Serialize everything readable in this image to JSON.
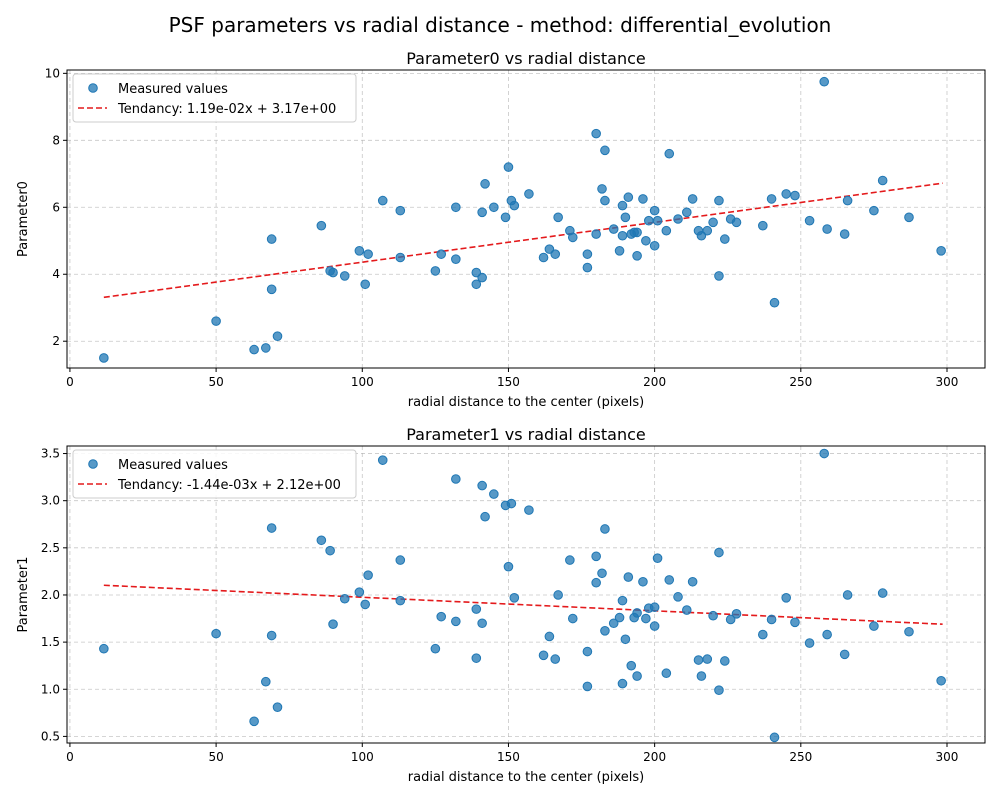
{
  "figure": {
    "title": "PSF parameters vs radial distance - method: differential_evolution"
  },
  "colors": {
    "points": "#1f77b4",
    "trend": "#e41a1c"
  },
  "chart_data": [
    {
      "type": "scatter",
      "title": "Parameter0 vs radial distance",
      "xlabel": "radial distance to the center (pixels)",
      "ylabel": "Parameter0",
      "xlim": [
        -1,
        313
      ],
      "ylim": [
        1.2,
        10.1
      ],
      "xticks": [
        0,
        50,
        100,
        150,
        200,
        250,
        300
      ],
      "yticks": [
        2,
        4,
        6,
        8,
        10
      ],
      "grid": true,
      "legend_position": "top-left",
      "series": [
        {
          "name": "Measured values",
          "kind": "points",
          "points": [
            [
              11.6,
              1.5
            ],
            [
              50,
              2.6
            ],
            [
              63,
              1.75
            ],
            [
              67,
              1.8
            ],
            [
              69,
              3.55
            ],
            [
              69,
              5.05
            ],
            [
              71,
              2.15
            ],
            [
              86,
              5.45
            ],
            [
              89,
              4.1
            ],
            [
              90,
              4.05
            ],
            [
              94,
              3.95
            ],
            [
              99,
              4.7
            ],
            [
              101,
              3.7
            ],
            [
              102,
              4.6
            ],
            [
              107,
              6.2
            ],
            [
              113,
              4.5
            ],
            [
              113,
              5.9
            ],
            [
              125,
              4.1
            ],
            [
              127,
              4.6
            ],
            [
              132,
              6.0
            ],
            [
              132,
              4.45
            ],
            [
              139,
              4.05
            ],
            [
              139,
              3.7
            ],
            [
              141,
              5.85
            ],
            [
              141,
              3.9
            ],
            [
              142,
              6.7
            ],
            [
              145,
              6.0
            ],
            [
              149,
              5.7
            ],
            [
              150,
              7.2
            ],
            [
              151,
              6.2
            ],
            [
              152,
              6.05
            ],
            [
              157,
              6.4
            ],
            [
              162,
              4.5
            ],
            [
              164,
              4.75
            ],
            [
              166,
              4.6
            ],
            [
              167,
              5.7
            ],
            [
              171,
              5.3
            ],
            [
              172,
              5.1
            ],
            [
              177,
              4.2
            ],
            [
              177,
              4.6
            ],
            [
              180,
              8.2
            ],
            [
              180,
              5.2
            ],
            [
              182,
              6.55
            ],
            [
              183,
              7.7
            ],
            [
              183,
              6.2
            ],
            [
              186,
              5.35
            ],
            [
              188,
              4.7
            ],
            [
              189,
              5.15
            ],
            [
              189,
              6.05
            ],
            [
              190,
              5.7
            ],
            [
              191,
              6.3
            ],
            [
              192,
              5.2
            ],
            [
              193,
              5.25
            ],
            [
              194,
              5.25
            ],
            [
              194,
              4.55
            ],
            [
              196,
              6.25
            ],
            [
              197,
              5.0
            ],
            [
              198,
              5.6
            ],
            [
              200,
              5.9
            ],
            [
              200,
              4.85
            ],
            [
              201,
              5.6
            ],
            [
              204,
              5.3
            ],
            [
              205,
              7.6
            ],
            [
              208,
              5.65
            ],
            [
              211,
              5.85
            ],
            [
              213,
              6.25
            ],
            [
              215,
              5.3
            ],
            [
              216,
              5.15
            ],
            [
              218,
              5.3
            ],
            [
              220,
              5.55
            ],
            [
              222,
              6.2
            ],
            [
              222,
              3.95
            ],
            [
              224,
              5.05
            ],
            [
              226,
              5.65
            ],
            [
              228,
              5.55
            ],
            [
              237,
              5.45
            ],
            [
              240,
              6.25
            ],
            [
              241,
              3.15
            ],
            [
              245,
              6.4
            ],
            [
              248,
              6.35
            ],
            [
              253,
              5.6
            ],
            [
              258,
              9.75
            ],
            [
              259,
              5.35
            ],
            [
              265,
              5.2
            ],
            [
              266,
              6.2
            ],
            [
              275,
              5.9
            ],
            [
              278,
              6.8
            ],
            [
              287,
              5.7
            ],
            [
              298,
              4.7
            ]
          ]
        },
        {
          "name": "Tendancy: 1.19e-02x + 3.17e+00",
          "kind": "line",
          "points": [
            [
              11.6,
              3.31
            ],
            [
              298.5,
              6.72
            ]
          ]
        }
      ]
    },
    {
      "type": "scatter",
      "title": "Parameter1 vs radial distance",
      "xlabel": "radial distance to the center (pixels)",
      "ylabel": "Parameter1",
      "xlim": [
        -1,
        313
      ],
      "ylim": [
        0.43,
        3.58
      ],
      "xticks": [
        0,
        50,
        100,
        150,
        200,
        250,
        300
      ],
      "yticks": [
        0.5,
        1.0,
        1.5,
        2.0,
        2.5,
        3.0,
        3.5
      ],
      "yticklabels": [
        "0.5",
        "1.0",
        "1.5",
        "2.0",
        "2.5",
        "3.0",
        "3.5"
      ],
      "grid": true,
      "legend_position": "top-left",
      "series": [
        {
          "name": "Measured values",
          "kind": "points",
          "points": [
            [
              11.6,
              1.43
            ],
            [
              50,
              1.59
            ],
            [
              63,
              0.66
            ],
            [
              67,
              1.08
            ],
            [
              69,
              1.57
            ],
            [
              69,
              2.71
            ],
            [
              71,
              0.81
            ],
            [
              86,
              2.58
            ],
            [
              89,
              2.47
            ],
            [
              90,
              1.69
            ],
            [
              94,
              1.96
            ],
            [
              99,
              2.03
            ],
            [
              101,
              1.9
            ],
            [
              102,
              2.21
            ],
            [
              107,
              3.43
            ],
            [
              113,
              2.37
            ],
            [
              113,
              1.94
            ],
            [
              125,
              1.43
            ],
            [
              127,
              1.77
            ],
            [
              132,
              3.23
            ],
            [
              132,
              1.72
            ],
            [
              139,
              1.85
            ],
            [
              139,
              1.33
            ],
            [
              141,
              3.16
            ],
            [
              141,
              1.7
            ],
            [
              142,
              2.83
            ],
            [
              145,
              3.07
            ],
            [
              149,
              2.95
            ],
            [
              150,
              2.3
            ],
            [
              151,
              2.97
            ],
            [
              152,
              1.97
            ],
            [
              157,
              2.9
            ],
            [
              162,
              1.36
            ],
            [
              164,
              1.56
            ],
            [
              166,
              1.32
            ],
            [
              167,
              2.0
            ],
            [
              171,
              2.37
            ],
            [
              172,
              1.75
            ],
            [
              177,
              1.03
            ],
            [
              177,
              1.4
            ],
            [
              180,
              2.41
            ],
            [
              180,
              2.13
            ],
            [
              182,
              2.23
            ],
            [
              183,
              2.7
            ],
            [
              183,
              1.62
            ],
            [
              186,
              1.7
            ],
            [
              188,
              1.76
            ],
            [
              189,
              1.94
            ],
            [
              189,
              1.06
            ],
            [
              190,
              1.53
            ],
            [
              191,
              2.19
            ],
            [
              192,
              1.25
            ],
            [
              193,
              1.76
            ],
            [
              194,
              1.81
            ],
            [
              194,
              1.14
            ],
            [
              196,
              2.14
            ],
            [
              197,
              1.75
            ],
            [
              198,
              1.86
            ],
            [
              200,
              1.87
            ],
            [
              200,
              1.67
            ],
            [
              201,
              2.39
            ],
            [
              204,
              1.17
            ],
            [
              205,
              2.16
            ],
            [
              208,
              1.98
            ],
            [
              211,
              1.84
            ],
            [
              213,
              2.14
            ],
            [
              215,
              1.31
            ],
            [
              216,
              1.14
            ],
            [
              218,
              1.32
            ],
            [
              220,
              1.78
            ],
            [
              222,
              2.45
            ],
            [
              222,
              0.99
            ],
            [
              224,
              1.3
            ],
            [
              226,
              1.74
            ],
            [
              228,
              1.8
            ],
            [
              237,
              1.58
            ],
            [
              240,
              1.74
            ],
            [
              241,
              0.49
            ],
            [
              245,
              1.97
            ],
            [
              248,
              1.71
            ],
            [
              253,
              1.49
            ],
            [
              258,
              3.5
            ],
            [
              259,
              1.58
            ],
            [
              265,
              1.37
            ],
            [
              266,
              2.0
            ],
            [
              275,
              1.67
            ],
            [
              278,
              2.02
            ],
            [
              287,
              1.61
            ],
            [
              298,
              1.09
            ]
          ]
        },
        {
          "name": "Tendancy: -1.44e-03x + 2.12e+00",
          "kind": "line",
          "points": [
            [
              11.6,
              2.103
            ],
            [
              298.5,
              1.69
            ]
          ]
        }
      ]
    }
  ]
}
